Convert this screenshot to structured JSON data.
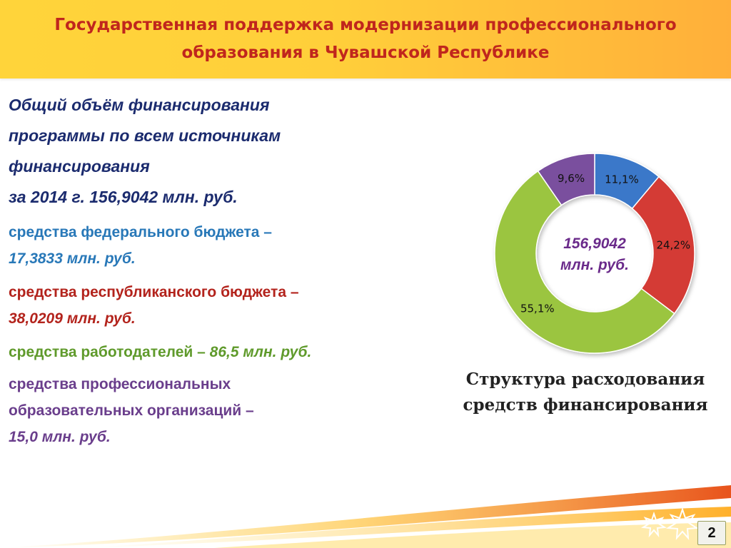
{
  "header": {
    "title_line1": "Государственная поддержка модернизации профессионального",
    "title_line2": "образования в Чувашской Республике"
  },
  "summary": {
    "line1": "Общий объём финансирования",
    "line2": "программы по всем источникам",
    "line3": "финансирования",
    "line4": "за 2014 г. 156,9042 млн. руб."
  },
  "sources": {
    "federal": {
      "label": "средства  федерального бюджета –",
      "amount": "17,3833 млн. руб."
    },
    "republic": {
      "label": "средства республиканского бюджета –",
      "amount": "38,0209 млн. руб."
    },
    "employers": {
      "label": "средства работодателей –",
      "amount": " 86,5  млн. руб."
    },
    "orgs": {
      "label1": "средства профессиональных",
      "label2": "образовательных организаций –",
      "amount": "15,0 млн. руб."
    }
  },
  "chart_data": {
    "type": "pie",
    "style": "doughnut",
    "center_label_line1": "156,9042",
    "center_label_line2": "млн. руб.",
    "slices": [
      {
        "label": "11,1%",
        "value": 11.1,
        "color": "#3a78c9"
      },
      {
        "label": "24,2%",
        "value": 24.2,
        "color": "#d43b35"
      },
      {
        "label": "55,1%",
        "value": 55.1,
        "color": "#9bc540"
      },
      {
        "label": "9,6%",
        "value": 9.6,
        "color": "#7a4f9e"
      }
    ]
  },
  "caption": {
    "line1": "Структура расходования",
    "line2": "средств финансирования"
  },
  "page_number": "2",
  "colors": {
    "header_bg": "#ffc83a",
    "title": "#c0261d",
    "summary": "#1b2b6e",
    "federal": "#2878b8",
    "republic": "#b3231c",
    "employers": "#5f9a2b",
    "orgs": "#6a3e8c"
  }
}
